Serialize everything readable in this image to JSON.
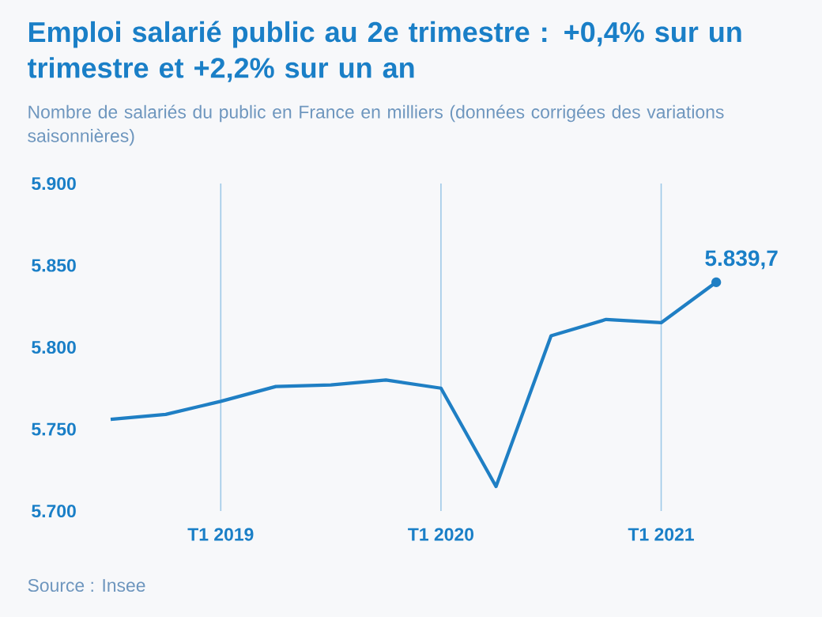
{
  "chart_data": {
    "type": "line",
    "title": "Emploi salarié public au 2e trimestre : +0,4% sur un trimestre et +2,2% sur un an",
    "subtitle": "Nombre de salariés du public en France en milliers (données corrigées des variations saisonnières)",
    "categories": [
      null,
      null,
      "T1 2019",
      null,
      null,
      null,
      "T1 2020",
      null,
      null,
      null,
      "T1 2021",
      null
    ],
    "series": [
      {
        "color": "#1f7fc4",
        "values": [
          5756,
          5759,
          5767,
          5776,
          5777,
          5780,
          5775,
          5715,
          5807,
          5817,
          5815,
          5839.7
        ],
        "value_labels": [
          null,
          null,
          null,
          null,
          null,
          null,
          null,
          null,
          null,
          null,
          null,
          "5.839,7"
        ]
      }
    ],
    "ylim": [
      5700,
      5900
    ],
    "yticks": [
      {
        "value": 5700,
        "label": "5.700"
      },
      {
        "value": 5750,
        "label": "5.750"
      },
      {
        "value": 5800,
        "label": "5.800"
      },
      {
        "value": 5850,
        "label": "5.850"
      },
      {
        "value": 5900,
        "label": "5.900"
      }
    ],
    "grid": "x",
    "marker": "none",
    "line_style": "solid",
    "annotations": [
      "Source : Insee"
    ]
  }
}
